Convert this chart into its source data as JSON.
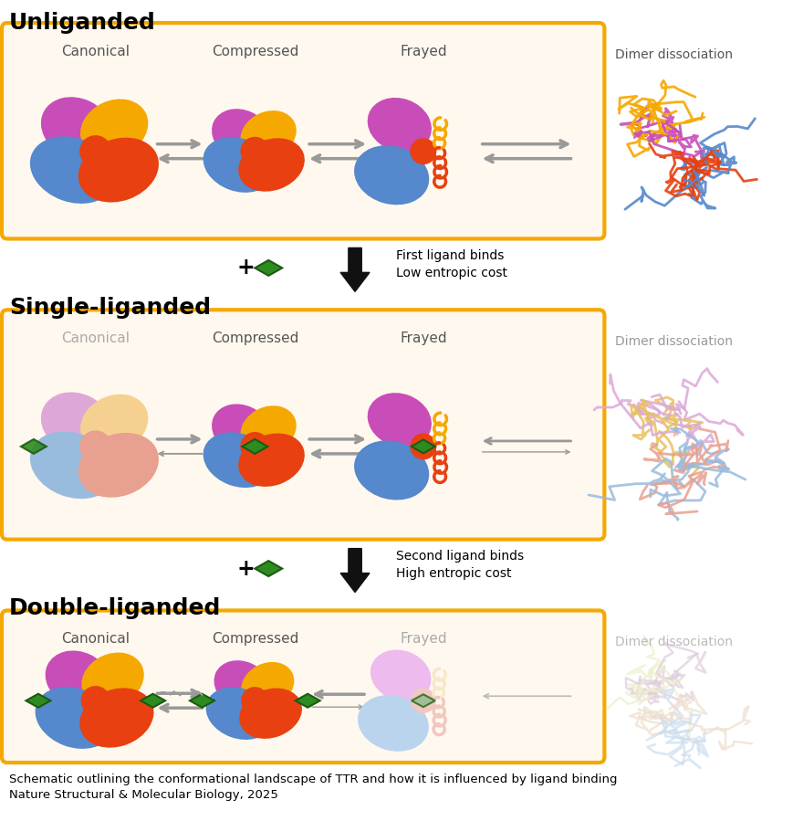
{
  "title_unliganded": "Unliganded",
  "title_single": "Single-liganded",
  "title_double": "Double-liganded",
  "label_canonical": "Canonical",
  "label_compressed": "Compressed",
  "label_frayed": "Frayed",
  "label_dimer": "Dimer dissociation",
  "text_first_ligand": "First ligand binds\nLow entropic cost",
  "text_second_ligand": "Second ligand binds\nHigh entropic cost",
  "caption_line1": "Schematic outlining the conformational landscape of TTR and how it is influenced by ligand binding",
  "caption_line2": "Nature Structural & Molecular Biology, 2025",
  "col_purple": "#C84DB8",
  "col_orange": "#F5A800",
  "col_blue": "#5588CC",
  "col_red": "#E84010",
  "col_green": "#2E8B20",
  "col_box_border": "#F5A800",
  "col_box_bg": "#FFF8EE",
  "col_bg": "#FFFFFF",
  "col_gray": "#888888",
  "col_black": "#111111",
  "col_purple_light": "#DDA8D8",
  "col_orange_light": "#F5D090",
  "col_blue_light": "#99BBDD",
  "col_red_light": "#E8A090",
  "col_purple_vlight": "#EEBBEE",
  "col_orange_vlight": "#F8E8C8",
  "col_blue_vlight": "#BBD4EE",
  "col_red_vlight": "#F0C8C0"
}
